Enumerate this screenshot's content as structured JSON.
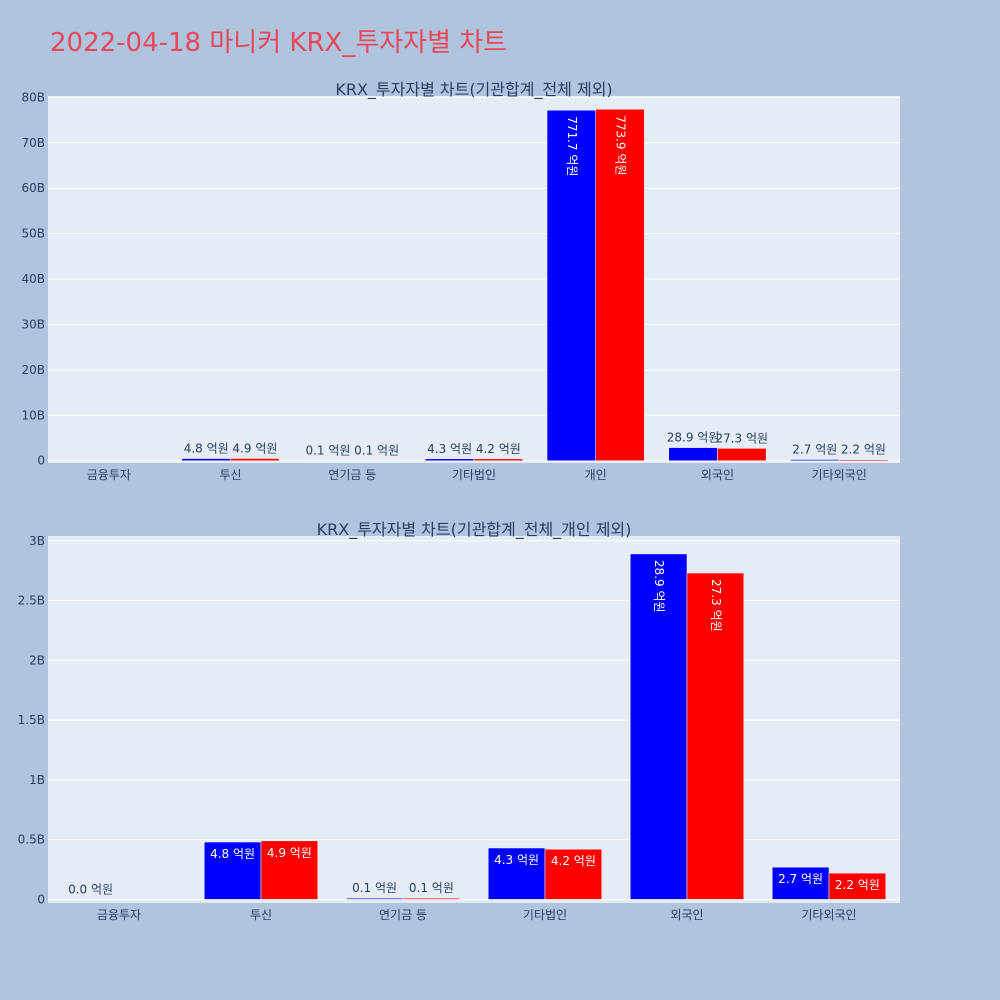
{
  "title": "2022-04-18 마니커 KRX_투자자별 차트",
  "colors": {
    "page_bg": "#B0C4DE",
    "plot_bg": "#E5ECF6",
    "series_a": "#0000FF",
    "series_b": "#FF0000",
    "title": "#E8485A",
    "text": "#2a3f5f"
  },
  "chart_data": [
    {
      "type": "bar",
      "title": "KRX_투자자별 차트(기관합계_전체 제외)",
      "categories": [
        "금융투자",
        "투신",
        "연기금 등",
        "기타법인",
        "개인",
        "외국인",
        "기타외국인"
      ],
      "series": [
        {
          "color": "#0000FF",
          "values": [
            0,
            480000000,
            10000000,
            430000000,
            77170000000,
            2890000000,
            270000000
          ],
          "labels": [
            "",
            "4.8 억원",
            "0.1 억원",
            "4.3 억원",
            "771.7 억원",
            "28.9 억원",
            "2.7 억원"
          ]
        },
        {
          "color": "#FF0000",
          "values": [
            0,
            490000000,
            10000000,
            420000000,
            77390000000,
            2730000000,
            220000000
          ],
          "labels": [
            "",
            "4.9 억원",
            "0.1 억원",
            "4.2 억원",
            "773.9 억원",
            "27.3 억원",
            "2.2 억원"
          ]
        }
      ],
      "yticks": [
        {
          "value": 0,
          "label": "0"
        },
        {
          "value": 10000000000,
          "label": "10B"
        },
        {
          "value": 20000000000,
          "label": "20B"
        },
        {
          "value": 30000000000,
          "label": "30B"
        },
        {
          "value": 40000000000,
          "label": "40B"
        },
        {
          "value": 50000000000,
          "label": "50B"
        },
        {
          "value": 60000000000,
          "label": "60B"
        },
        {
          "value": 70000000000,
          "label": "70B"
        },
        {
          "value": 80000000000,
          "label": "80B"
        }
      ],
      "ylim": [
        -500000000,
        80300000000
      ],
      "grid": true
    },
    {
      "type": "bar",
      "title": "KRX_투자자별 차트(기관합계_전체_개인 제외)",
      "categories": [
        "금융투자",
        "투신",
        "연기금 등",
        "기타법인",
        "외국인",
        "기타외국인"
      ],
      "series": [
        {
          "color": "#0000FF",
          "values": [
            0,
            480000000,
            10000000,
            430000000,
            2890000000,
            270000000
          ],
          "labels": [
            "0.0 억원",
            "4.8 억원",
            "0.1 억원",
            "4.3 억원",
            "28.9 억원",
            "2.7 억원"
          ]
        },
        {
          "color": "#FF0000",
          "values": [
            0,
            490000000,
            10000000,
            420000000,
            2730000000,
            220000000
          ],
          "labels": [
            "",
            "4.9 억원",
            "0.1 억원",
            "4.2 억원",
            "27.3 억원",
            "2.2 억원"
          ]
        }
      ],
      "yticks": [
        {
          "value": 0,
          "label": "0"
        },
        {
          "value": 500000000,
          "label": "0.5B"
        },
        {
          "value": 1000000000,
          "label": "1B"
        },
        {
          "value": 1500000000,
          "label": "1.5B"
        },
        {
          "value": 2000000000,
          "label": "2B"
        },
        {
          "value": 2500000000,
          "label": "2.5B"
        },
        {
          "value": 3000000000,
          "label": "3B"
        }
      ],
      "ylim": [
        -30000000,
        3040000000
      ],
      "grid": true
    }
  ]
}
